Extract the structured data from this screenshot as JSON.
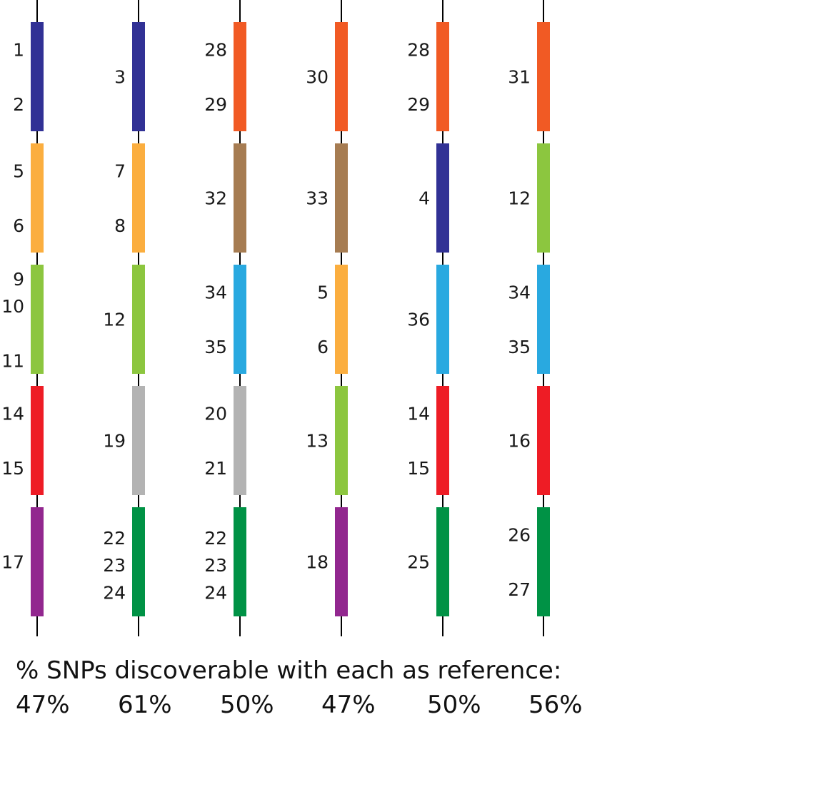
{
  "colors": {
    "navy": "#313195",
    "orange_light": "#FBAE3F",
    "lime": "#8CC63F",
    "red": "#EE1C25",
    "purple": "#92278F",
    "orange": "#F15A24",
    "brown": "#A67C52",
    "sky": "#29A9E0",
    "gray": "#B3B3B3",
    "green": "#009245",
    "line": "#000000"
  },
  "columns": [
    {
      "segments": [
        {
          "color": "navy",
          "labels": [
            "1",
            "2"
          ]
        },
        {
          "color": "orange_light",
          "labels": [
            "5",
            "6"
          ]
        },
        {
          "color": "lime",
          "labels": [
            "9",
            "10",
            "11"
          ]
        },
        {
          "color": "red",
          "labels": [
            "14",
            "15"
          ]
        },
        {
          "color": "purple",
          "labels": [
            "17"
          ]
        }
      ]
    },
    {
      "segments": [
        {
          "color": "navy",
          "labels": [
            "3"
          ]
        },
        {
          "color": "orange_light",
          "labels": [
            "7",
            "8"
          ]
        },
        {
          "color": "lime",
          "labels": [
            "12"
          ]
        },
        {
          "color": "gray",
          "labels": [
            "19"
          ]
        },
        {
          "color": "green",
          "labels": [
            "22",
            "23",
            "24"
          ]
        }
      ]
    },
    {
      "segments": [
        {
          "color": "orange",
          "labels": [
            "28",
            "29"
          ]
        },
        {
          "color": "brown",
          "labels": [
            "32"
          ]
        },
        {
          "color": "sky",
          "labels": [
            "34",
            "35"
          ]
        },
        {
          "color": "gray",
          "labels": [
            "20",
            "21"
          ]
        },
        {
          "color": "green",
          "labels": [
            "22",
            "23",
            "24"
          ]
        }
      ]
    },
    {
      "segments": [
        {
          "color": "orange",
          "labels": [
            "30"
          ]
        },
        {
          "color": "brown",
          "labels": [
            "33"
          ]
        },
        {
          "color": "orange_light",
          "labels": [
            "5",
            "6"
          ]
        },
        {
          "color": "lime",
          "labels": [
            "13"
          ]
        },
        {
          "color": "purple",
          "labels": [
            "18"
          ]
        }
      ]
    },
    {
      "segments": [
        {
          "color": "orange",
          "labels": [
            "28",
            "29"
          ]
        },
        {
          "color": "navy",
          "labels": [
            "4"
          ]
        },
        {
          "color": "sky",
          "labels": [
            "36"
          ]
        },
        {
          "color": "red",
          "labels": [
            "14",
            "15"
          ]
        },
        {
          "color": "green",
          "labels": [
            "25"
          ]
        }
      ]
    },
    {
      "segments": [
        {
          "color": "orange",
          "labels": [
            "31"
          ]
        },
        {
          "color": "lime",
          "labels": [
            "12"
          ]
        },
        {
          "color": "sky",
          "labels": [
            "34",
            "35"
          ]
        },
        {
          "color": "red",
          "labels": [
            "16"
          ]
        },
        {
          "color": "green",
          "labels": [
            "26",
            "27"
          ]
        }
      ]
    }
  ],
  "caption": "% SNPs discoverable with each as reference:",
  "percentages": [
    "47%",
    "61%",
    "50%",
    "47%",
    "50%",
    "56%"
  ]
}
